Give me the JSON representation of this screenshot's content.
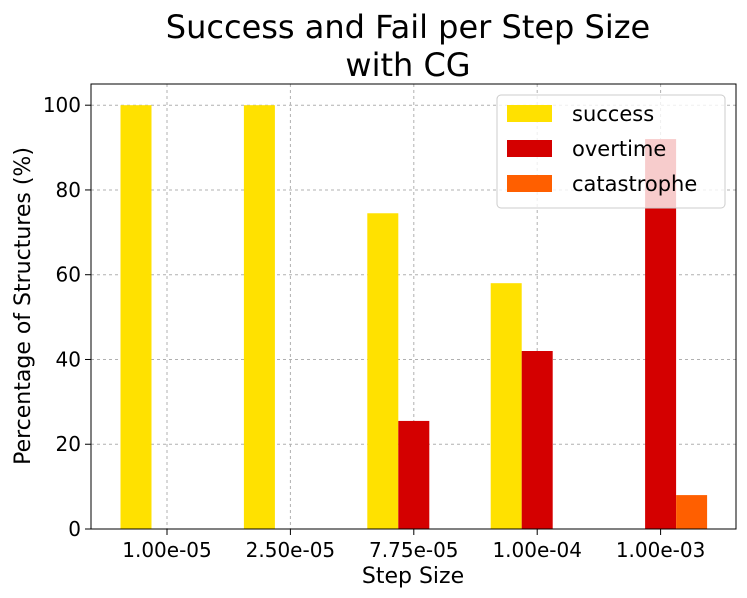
{
  "chart_data": {
    "type": "bar",
    "title_line1": "Success and Fail per Step Size",
    "title_line2": "with CG",
    "xlabel": "Step Size",
    "ylabel": "Percentage of Structures (%)",
    "categories": [
      "1.00e-05",
      "2.50e-05",
      "7.75e-05",
      "1.00e-04",
      "1.00e-03"
    ],
    "ylim": [
      0,
      105
    ],
    "yticks": [
      0,
      20,
      40,
      60,
      80,
      100
    ],
    "grid": true,
    "legend_position": "top-right",
    "series": [
      {
        "name": "success",
        "color": "#FFE100",
        "values": [
          100,
          100,
          74.5,
          58,
          0
        ]
      },
      {
        "name": "overtime",
        "color": "#D40000",
        "values": [
          0,
          0,
          25.5,
          42,
          92
        ]
      },
      {
        "name": "catastrophe",
        "color": "#FF5F00",
        "values": [
          0,
          0,
          0,
          0,
          8
        ]
      }
    ]
  }
}
